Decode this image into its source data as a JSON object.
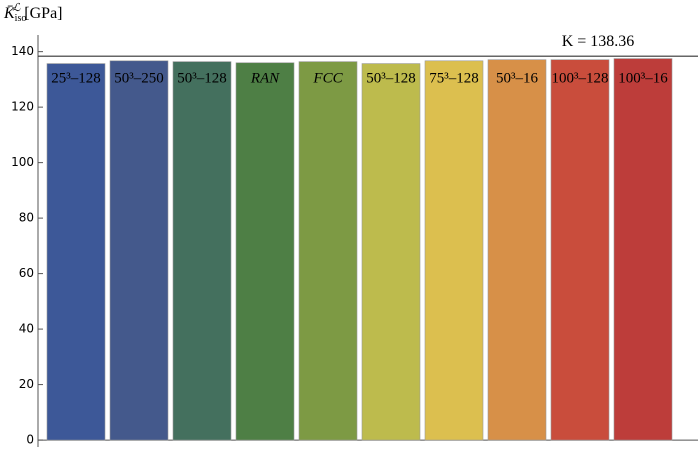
{
  "chart_data": {
    "type": "bar",
    "ylabel": {
      "symbol": "K̄",
      "sup": "ℒ",
      "sub": "iso",
      "unit": "[GPa]"
    },
    "categories": [
      "25³–128",
      "50³–250",
      "50³–128",
      "RAN",
      "FCC",
      "50³–128",
      "75³–128",
      "50³–16",
      "100³–128",
      "100³–16"
    ],
    "italic_categories": [
      "RAN",
      "FCC"
    ],
    "values": [
      135.7,
      136.7,
      136.4,
      136.0,
      136.4,
      135.7,
      136.7,
      137.1,
      137.1,
      137.5
    ],
    "colors": [
      "#3d5898",
      "#44598c",
      "#44705e",
      "#4e7f45",
      "#7d9a44",
      "#bdbb4d",
      "#dcbf4f",
      "#d79048",
      "#c94d3c",
      "#bd3d3a"
    ],
    "ylim": [
      -2.5,
      146
    ],
    "yticks": [
      0,
      20,
      40,
      60,
      80,
      100,
      120,
      140
    ],
    "reference": {
      "value": 138.36,
      "label": "K = 138.36"
    }
  }
}
